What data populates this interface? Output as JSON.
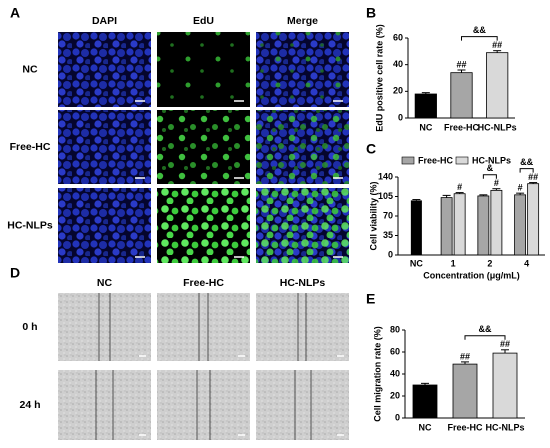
{
  "panel_letters": [
    "A",
    "B",
    "C",
    "D",
    "E"
  ],
  "panel_a": {
    "columns": [
      "DAPI",
      "EdU",
      "Merge"
    ],
    "rows": [
      "NC",
      "Free-HC",
      "HC-NLPs"
    ]
  },
  "panel_d": {
    "columns": [
      "NC",
      "Free-HC",
      "HC-NLPs"
    ],
    "rows": [
      "0 h",
      "24 h"
    ]
  },
  "chart_data": [
    {
      "type": "bar",
      "y_label": "EdU positive cell rate (%)",
      "categories": [
        "NC",
        "Free-HC",
        "HC-NLPs"
      ],
      "values": [
        18,
        34,
        49
      ],
      "errors": [
        1,
        2,
        1.5
      ],
      "colors": [
        "#000000",
        "#a6a6a6",
        "#d9d9d9"
      ],
      "significance": [
        null,
        "##",
        "##"
      ],
      "bracket": "&&",
      "ylim": [
        0,
        60
      ],
      "yticks": [
        0,
        20,
        40,
        60
      ]
    },
    {
      "type": "grouped_bar",
      "y_label": "Cell viability (%)",
      "x_label": "Concentration (μg/mL)",
      "categories": [
        "NC",
        "1",
        "2",
        "4"
      ],
      "control": {
        "value": 98,
        "error": 1.5,
        "color": "#000000"
      },
      "series": [
        {
          "name": "Free-HC",
          "color": "#a6a6a6",
          "values": [
            null,
            103,
            106,
            108
          ],
          "errors": [
            null,
            4,
            2,
            3
          ],
          "significance": [
            null,
            null,
            null,
            "#"
          ]
        },
        {
          "name": "HC-NLPs",
          "color": "#d9d9d9",
          "values": [
            null,
            110,
            116,
            128
          ],
          "errors": [
            null,
            2,
            3,
            2
          ],
          "significance": [
            null,
            "#",
            "#",
            "##"
          ]
        }
      ],
      "brackets": [
        null,
        null,
        "&",
        "&&"
      ],
      "legend": "top",
      "ylim": [
        0,
        140
      ],
      "yticks": [
        0,
        35,
        70,
        105,
        140
      ]
    },
    {
      "type": "bar",
      "y_label": "Cell migration rate (%)",
      "categories": [
        "NC",
        "Free-HC",
        "HC-NLPs"
      ],
      "values": [
        30,
        49,
        59
      ],
      "errors": [
        1.5,
        2,
        3
      ],
      "colors": [
        "#000000",
        "#a6a6a6",
        "#d9d9d9"
      ],
      "significance": [
        null,
        "##",
        "##"
      ],
      "bracket": "&&",
      "ylim": [
        0,
        80
      ],
      "yticks": [
        0,
        20,
        40,
        60,
        80
      ]
    }
  ]
}
